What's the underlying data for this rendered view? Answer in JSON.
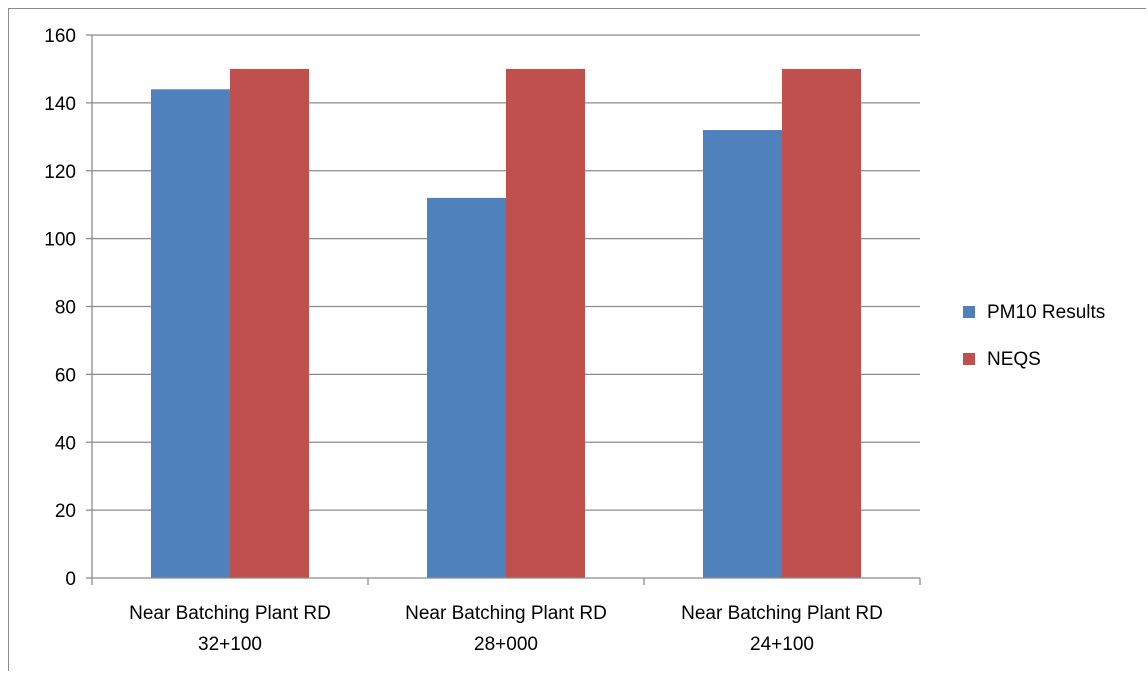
{
  "chart_data": {
    "type": "bar",
    "categories": [
      [
        "Near Batching Plant RD",
        "32+100"
      ],
      [
        "Near Batching Plant RD",
        "28+000"
      ],
      [
        "Near Batching Plant RD",
        "24+100"
      ]
    ],
    "series": [
      {
        "name": "PM10 Results",
        "values": [
          144,
          112,
          132
        ],
        "color": "#4F81BD"
      },
      {
        "name": "NEQS",
        "values": [
          150,
          150,
          150
        ],
        "color": "#C0504D"
      }
    ],
    "ylim": [
      0,
      160
    ],
    "yticks": [
      0,
      20,
      40,
      60,
      80,
      100,
      120,
      140,
      160
    ],
    "grid": true,
    "legend": "right",
    "title": "",
    "xlabel": "",
    "ylabel": ""
  }
}
